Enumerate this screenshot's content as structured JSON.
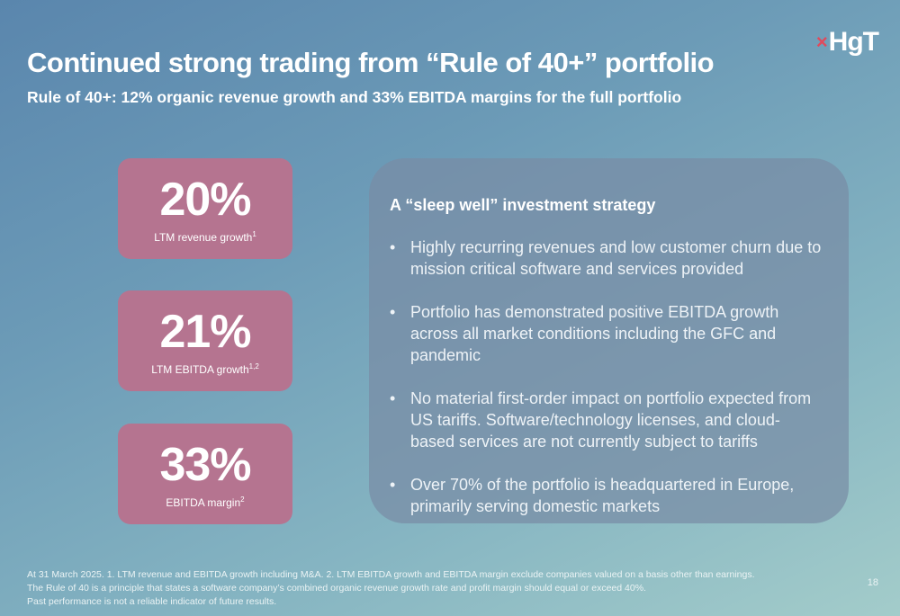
{
  "logo": {
    "mark": "×",
    "text": "HgT"
  },
  "title": "Continued strong trading from “Rule of 40+” portfolio",
  "subtitle": "Rule of 40+: 12% organic revenue growth and 33% EBITDA margins for the full portfolio",
  "stats": [
    {
      "value": "20%",
      "label": "LTM revenue growth",
      "sup": "1"
    },
    {
      "value": "21%",
      "label": "LTM EBITDA growth",
      "sup": "1,2"
    },
    {
      "value": "33%",
      "label": "EBITDA margin",
      "sup": "2"
    }
  ],
  "panel": {
    "heading": "A “sleep well” investment strategy",
    "bullets": [
      "Highly recurring revenues and low customer churn due to mission critical software and services provided",
      "Portfolio has demonstrated positive EBITDA growth across all market conditions including the GFC and pandemic",
      "No material first-order impact on portfolio expected from US tariffs. Software/technology licenses, and cloud-based services are not currently subject to tariffs",
      "Over 70% of the portfolio is headquartered in Europe, primarily serving domestic markets"
    ]
  },
  "footnotes": [
    "At 31 March 2025. 1. LTM revenue and EBITDA growth including M&A. 2. LTM EBITDA growth and EBITDA margin exclude companies valued on a basis other than earnings.",
    "The Rule of 40 is a principle that states a software company’s combined organic revenue growth rate and profit margin should equal or exceed 40%.",
    "Past performance is not a reliable indicator of future results."
  ],
  "page_number": "18",
  "colors": {
    "stat_box": "#b57490",
    "logo_mark": "#e04a5c",
    "panel": "#7a8ca5"
  }
}
